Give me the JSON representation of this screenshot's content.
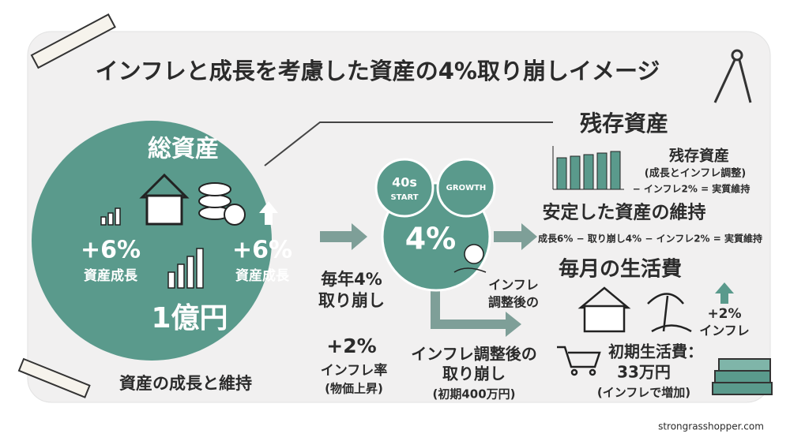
{
  "title": "インフレと成長を考慮した資産の4%取り崩しイメージ",
  "total_assets": {
    "heading": "総資産",
    "left_growth": "+6%",
    "left_label": "資産成長",
    "right_growth": "+6%",
    "right_label": "資産成長",
    "amount": "1億円",
    "caption": "資産の成長と維持"
  },
  "withdrawal": {
    "lines": [
      "毎年4%",
      "取り崩し"
    ]
  },
  "inflation_rate": {
    "lines": [
      "+2%",
      "インフレ率",
      "(物価上昇)"
    ]
  },
  "center": {
    "start": [
      "40s",
      "START"
    ],
    "growth": "GROWTH",
    "rate": "4%"
  },
  "adjusted_note": {
    "lines": [
      "インフレ",
      "調整後の"
    ]
  },
  "adjusted_withdrawal": {
    "lines": [
      "インフレ調整後の",
      "取り崩し",
      "(初期400万円)"
    ]
  },
  "remaining": {
    "heading": "残存資産",
    "note": [
      "残存資産",
      "(成長とインフレ調整)",
      "− インフレ2% = 実質維持"
    ],
    "stable": "安定した資産の維持",
    "formula": "成長6% − 取り崩し4% − インフレ2% = 実質維持"
  },
  "living_costs": {
    "heading": "毎月の生活費",
    "inflation": [
      "+2%",
      "インフレ"
    ],
    "initial": [
      "初期生活費：",
      "33万円",
      "(インフレで増加)"
    ]
  },
  "footer": "strongrasshopper.com"
}
